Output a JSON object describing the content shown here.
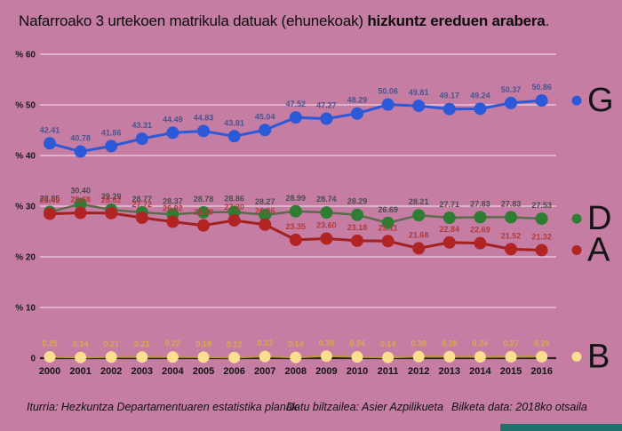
{
  "title": {
    "normal": "Nafarroako 3 urtekoen matrikula datuak (ehunekoak) ",
    "bold": "hizkuntz ereduen arabera",
    "period": "."
  },
  "footer": {
    "source": "Iturria: Hezkuntza Departamentuaren estatistika planak",
    "collector": "Datu biltzailea: Asier Azpilikueta",
    "date": "Bilketa data: 2018ko otsaila"
  },
  "colors": {
    "background": "#c57da4",
    "gridline": "rgba(255,255,255,0.55)",
    "zero_axis": "#2a211e",
    "accent_bar": "#20706c"
  },
  "chart_data": {
    "type": "line",
    "title": "Nafarroako 3 urtekoen matrikula datuak (ehunekoak) hizkuntz ereduen arabera.",
    "x": [
      2000,
      2001,
      2002,
      2003,
      2004,
      2005,
      2006,
      2007,
      2008,
      2009,
      2010,
      2011,
      2012,
      2013,
      2014,
      2015,
      2016
    ],
    "series": [
      {
        "name": "G",
        "color": "#2b59d8",
        "line_color": "#2b59d8",
        "label_color": "#4b548c",
        "marker_r": 7,
        "line_width": 3,
        "values": [
          42.41,
          40.78,
          41.86,
          43.31,
          44.49,
          44.83,
          43.81,
          45.04,
          47.52,
          47.27,
          48.29,
          50.06,
          49.81,
          49.17,
          49.24,
          50.37,
          50.86
        ]
      },
      {
        "name": "D",
        "color": "#2e7d32",
        "line_color": "#5c6b4b",
        "label_color": "#4c4c4c",
        "marker_r": 7,
        "line_width": 2.5,
        "values": [
          28.85,
          30.4,
          29.29,
          28.77,
          28.37,
          28.78,
          28.86,
          28.27,
          28.99,
          28.74,
          28.29,
          26.69,
          28.21,
          27.71,
          27.83,
          27.83,
          27.53
        ]
      },
      {
        "name": "A",
        "color": "#b22424",
        "line_color": "#a32020",
        "label_color": "#b23a3a",
        "marker_r": 7,
        "line_width": 3,
        "values": [
          28.49,
          28.68,
          28.62,
          27.72,
          26.92,
          26.2,
          27.2,
          26.36,
          23.35,
          23.6,
          23.18,
          23.11,
          21.68,
          22.84,
          22.69,
          21.52,
          21.32
        ]
      },
      {
        "name": "B",
        "color": "#fcdf8e",
        "line_color": "#bb973f",
        "label_color": "#dfa74c",
        "marker_r": 6.5,
        "line_width": 2,
        "values": [
          0.25,
          0.14,
          0.21,
          0.21,
          0.22,
          0.19,
          0.12,
          0.33,
          0.14,
          0.39,
          0.24,
          0.14,
          0.3,
          0.28,
          0.24,
          0.27,
          0.29
        ]
      }
    ],
    "ylim": [
      0,
      60
    ],
    "yticks": {
      "values": [
        60,
        50,
        40,
        30,
        20,
        10,
        0
      ],
      "labels": [
        "% 60",
        "% 50",
        "% 40",
        "% 30",
        "% 20",
        "% 10",
        "0"
      ]
    },
    "grid": true,
    "legend_position": "right"
  }
}
